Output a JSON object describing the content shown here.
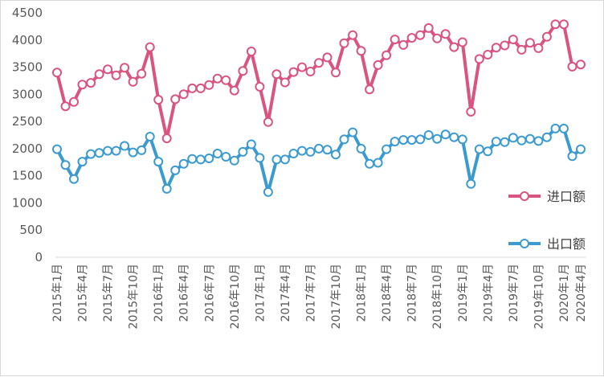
{
  "chart_data": {
    "type": "line",
    "title": "",
    "xlabel": "",
    "ylabel": "",
    "ylim": [
      0,
      4500
    ],
    "yticks": [
      0,
      500,
      1000,
      1500,
      2000,
      2500,
      3000,
      3500,
      4000,
      4500
    ],
    "grid": false,
    "legend_position": "right",
    "x": [
      "2015年1月",
      "2015年2月",
      "2015年3月",
      "2015年4月",
      "2015年5月",
      "2015年6月",
      "2015年7月",
      "2015年8月",
      "2015年9月",
      "2015年10月",
      "2015年11月",
      "2015年12月",
      "2016年1月",
      "2016年2月",
      "2016年3月",
      "2016年4月",
      "2016年5月",
      "2016年6月",
      "2016年7月",
      "2016年8月",
      "2016年9月",
      "2016年10月",
      "2016年11月",
      "2016年12月",
      "2017年1月",
      "2017年2月",
      "2017年3月",
      "2017年4月",
      "2017年5月",
      "2017年6月",
      "2017年7月",
      "2017年8月",
      "2017年9月",
      "2017年10月",
      "2017年11月",
      "2017年12月",
      "2018年1月",
      "2018年2月",
      "2018年3月",
      "2018年4月",
      "2018年5月",
      "2018年6月",
      "2018年7月",
      "2018年8月",
      "2018年9月",
      "2018年10月",
      "2018年11月",
      "2018年12月",
      "2019年1月",
      "2019年2月",
      "2019年3月",
      "2019年4月",
      "2019年5月",
      "2019年6月",
      "2019年7月",
      "2019年8月",
      "2019年9月",
      "2019年10月",
      "2019年11月",
      "2019年12月",
      "2020年1月",
      "2020年3月",
      "2020年4月"
    ],
    "xtick_labels": [
      "2015年1月",
      "2015年4月",
      "2015年7月",
      "2015年10月",
      "2016年1月",
      "2016年4月",
      "2016年7月",
      "2016年10月",
      "2017年1月",
      "2017年4月",
      "2017年7月",
      "2017年10月",
      "2018年1月",
      "2018年4月",
      "2018年7月",
      "2018年10月",
      "2019年1月",
      "2019年4月",
      "2019年7月",
      "2019年10月",
      "2020年1月",
      "2020年4月"
    ],
    "series": [
      {
        "name": "进口额",
        "color": "#d9547f",
        "values": [
          3400,
          2780,
          2860,
          3180,
          3210,
          3370,
          3460,
          3350,
          3490,
          3230,
          3380,
          3870,
          2900,
          2190,
          2910,
          3000,
          3110,
          3110,
          3170,
          3290,
          3260,
          3070,
          3430,
          3790,
          3140,
          2490,
          3370,
          3220,
          3410,
          3500,
          3420,
          3580,
          3680,
          3400,
          3940,
          4090,
          3800,
          3090,
          3540,
          3720,
          4010,
          3910,
          4040,
          4090,
          4220,
          4030,
          4110,
          3870,
          3960,
          2680,
          3650,
          3730,
          3860,
          3900,
          4010,
          3820,
          3950,
          3850,
          4060,
          4290,
          4290,
          3510,
          3550
        ]
      },
      {
        "name": "出口额",
        "color": "#3b9bd0",
        "values": [
          1990,
          1700,
          1440,
          1760,
          1900,
          1920,
          1960,
          1960,
          2050,
          1930,
          1970,
          2220,
          1760,
          1260,
          1600,
          1720,
          1810,
          1800,
          1820,
          1910,
          1850,
          1780,
          1940,
          2080,
          1830,
          1200,
          1800,
          1800,
          1910,
          1960,
          1940,
          2000,
          1980,
          1890,
          2170,
          2300,
          2000,
          1720,
          1740,
          1990,
          2130,
          2160,
          2160,
          2170,
          2250,
          2180,
          2260,
          2210,
          2170,
          1350,
          1990,
          1950,
          2130,
          2120,
          2200,
          2150,
          2180,
          2140,
          2210,
          2370,
          2370,
          1860,
          1990
        ]
      }
    ]
  }
}
